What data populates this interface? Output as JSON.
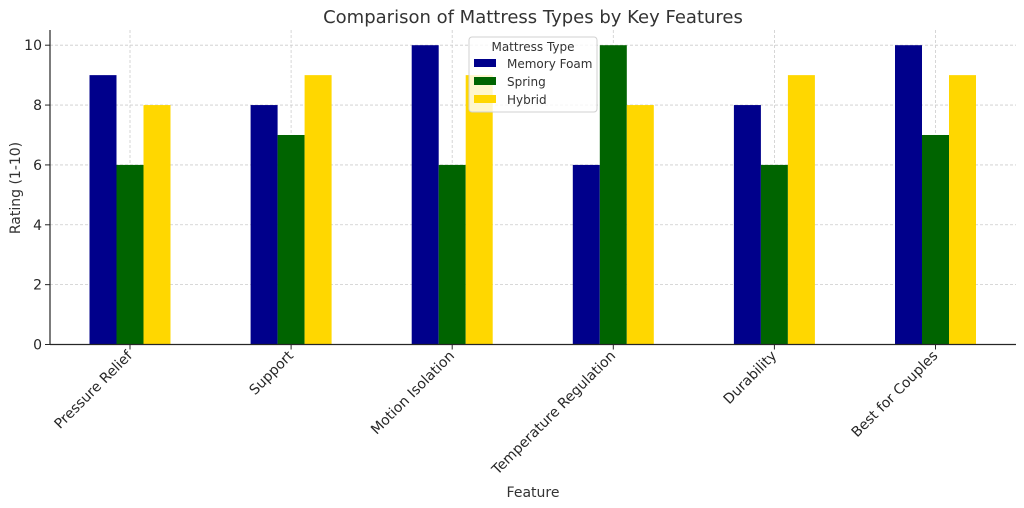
{
  "chart_data": {
    "type": "bar",
    "title": "Comparison of Mattress Types by Key Features",
    "xlabel": "Feature",
    "ylabel": "Rating (1-10)",
    "categories": [
      "Pressure Relief",
      "Support",
      "Motion Isolation",
      "Temperature Regulation",
      "Durability",
      "Best for Couples"
    ],
    "series": [
      {
        "name": "Memory Foam",
        "color": "#00008b",
        "values": [
          9,
          8,
          10,
          6,
          8,
          10
        ]
      },
      {
        "name": "Spring",
        "color": "#006400",
        "values": [
          6,
          7,
          6,
          10,
          6,
          7
        ]
      },
      {
        "name": "Hybrid",
        "color": "#ffd700",
        "values": [
          8,
          9,
          9,
          8,
          9,
          9
        ]
      }
    ],
    "ylim": [
      0,
      10.5
    ],
    "yticks": [
      0,
      2,
      4,
      6,
      8,
      10
    ],
    "grid": true,
    "legend": {
      "title": "Mattress Type",
      "position": "upper center"
    }
  }
}
